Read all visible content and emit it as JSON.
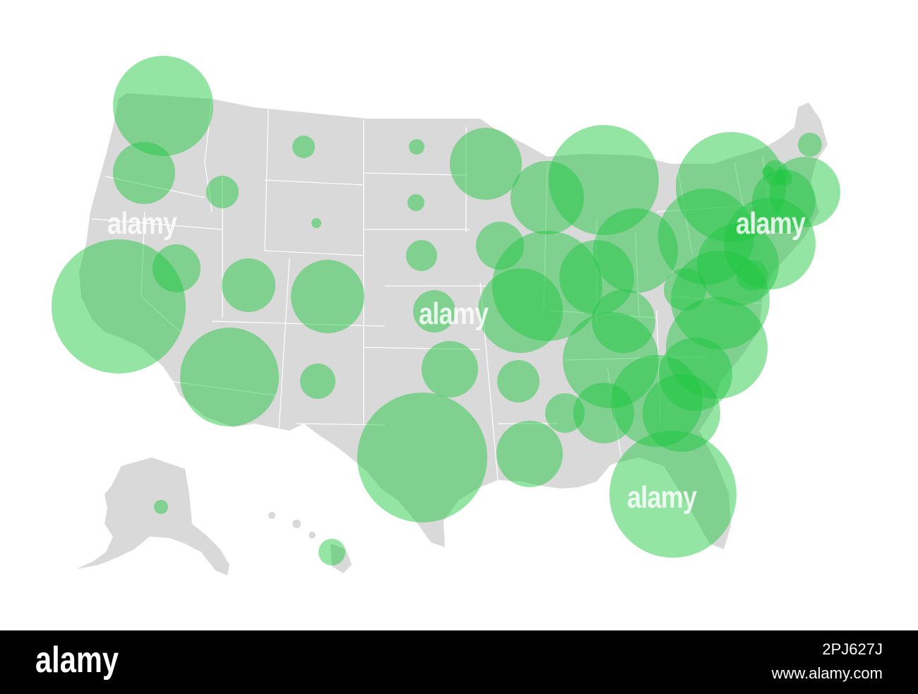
{
  "map": {
    "land_color": "#d9d9d9",
    "border_color": "#ffffff",
    "bubble_color": "#1fc740",
    "bubble_opacity": 0.48,
    "bubbles": [
      {
        "name": "Washington",
        "size": "large"
      },
      {
        "name": "Oregon",
        "size": "medium"
      },
      {
        "name": "California",
        "size": "xlarge"
      },
      {
        "name": "Idaho",
        "size": "small"
      },
      {
        "name": "Nevada",
        "size": "medium-small"
      },
      {
        "name": "Montana",
        "size": "small"
      },
      {
        "name": "Wyoming",
        "size": "tiny"
      },
      {
        "name": "Utah",
        "size": "medium-small"
      },
      {
        "name": "Arizona",
        "size": "large"
      },
      {
        "name": "Colorado",
        "size": "large"
      },
      {
        "name": "New Mexico",
        "size": "small"
      },
      {
        "name": "North Dakota",
        "size": "tiny"
      },
      {
        "name": "South Dakota",
        "size": "tiny"
      },
      {
        "name": "Nebraska",
        "size": "small"
      },
      {
        "name": "Kansas",
        "size": "small"
      },
      {
        "name": "Oklahoma",
        "size": "medium-small"
      },
      {
        "name": "Texas",
        "size": "xlarge"
      },
      {
        "name": "Minnesota",
        "size": "medium"
      },
      {
        "name": "Iowa",
        "size": "small"
      },
      {
        "name": "Missouri",
        "size": "medium"
      },
      {
        "name": "Arkansas",
        "size": "small"
      },
      {
        "name": "Louisiana",
        "size": "medium-small"
      },
      {
        "name": "Wisconsin",
        "size": "medium"
      },
      {
        "name": "Illinois",
        "size": "medium"
      },
      {
        "name": "Michigan",
        "size": "large"
      },
      {
        "name": "Indiana",
        "size": "medium"
      },
      {
        "name": "Ohio",
        "size": "medium"
      },
      {
        "name": "Kentucky",
        "size": "medium"
      },
      {
        "name": "Tennessee",
        "size": "medium"
      },
      {
        "name": "Mississippi",
        "size": "medium-small"
      },
      {
        "name": "Alabama",
        "size": "medium"
      },
      {
        "name": "Georgia",
        "size": "medium"
      },
      {
        "name": "Florida",
        "size": "xlarge"
      },
      {
        "name": "South Carolina",
        "size": "medium"
      },
      {
        "name": "North Carolina",
        "size": "medium"
      },
      {
        "name": "Virginia",
        "size": "medium"
      },
      {
        "name": "West Virginia",
        "size": "small"
      },
      {
        "name": "Pennsylvania",
        "size": "large"
      },
      {
        "name": "New York",
        "size": "large"
      },
      {
        "name": "New Jersey",
        "size": "medium"
      },
      {
        "name": "Maryland",
        "size": "medium"
      },
      {
        "name": "Delaware",
        "size": "small"
      },
      {
        "name": "Connecticut",
        "size": "small"
      },
      {
        "name": "Rhode Island",
        "size": "tiny"
      },
      {
        "name": "Massachusetts",
        "size": "medium"
      },
      {
        "name": "Vermont",
        "size": "tiny"
      },
      {
        "name": "New Hampshire",
        "size": "tiny"
      },
      {
        "name": "Maine",
        "size": "tiny"
      },
      {
        "name": "Alaska",
        "size": "tiny"
      },
      {
        "name": "Hawaii",
        "size": "tiny"
      }
    ]
  },
  "watermarks": [
    "alamy",
    "alamy",
    "alamy",
    "alamy"
  ],
  "footer": {
    "logo": "alamy",
    "image_id": "2PJ627J",
    "url": "www.alamy.com"
  }
}
